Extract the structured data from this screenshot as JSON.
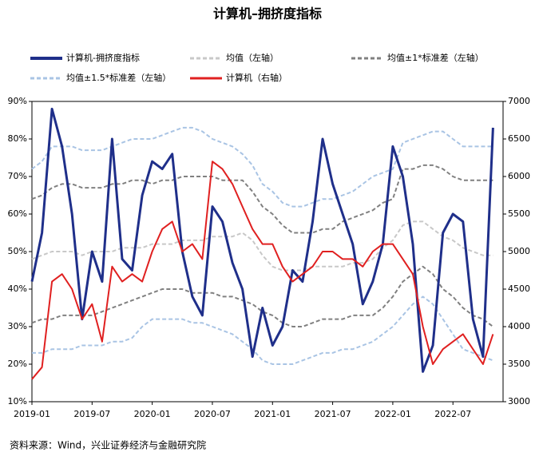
{
  "chart_data": {
    "type": "line",
    "title": "计算机–拥挤度指标",
    "source": "资料来源：Wind，兴业证券经济与金融研究院",
    "categories": [
      "2019-01",
      null,
      null,
      null,
      null,
      null,
      "2019-07",
      null,
      null,
      null,
      null,
      null,
      "2020-01",
      null,
      null,
      null,
      null,
      null,
      "2020-07",
      null,
      null,
      null,
      null,
      null,
      "2021-01",
      null,
      null,
      null,
      null,
      null,
      "2021-07",
      null,
      null,
      null,
      null,
      null,
      "2022-01",
      null,
      null,
      null,
      null,
      null,
      "2022-07",
      null,
      null,
      null,
      null
    ],
    "ylim": [
      10,
      90
    ],
    "yticks": [
      {
        "value": 10,
        "label": "10%"
      },
      {
        "value": 20,
        "label": "20%"
      },
      {
        "value": 30,
        "label": "30%"
      },
      {
        "value": 40,
        "label": "40%"
      },
      {
        "value": 50,
        "label": "50%"
      },
      {
        "value": 60,
        "label": "60%"
      },
      {
        "value": 70,
        "label": "70%"
      },
      {
        "value": 80,
        "label": "80%"
      },
      {
        "value": 90,
        "label": "90%"
      }
    ],
    "y2lim": [
      3000,
      7000
    ],
    "y2ticks": [
      3000,
      3500,
      4000,
      4500,
      5000,
      5500,
      6000,
      6500,
      7000
    ],
    "series": [
      {
        "name": "计算机-拥挤度指标",
        "color": "#1f2f8a",
        "width": 3,
        "dash": false,
        "values": [
          42,
          55,
          88,
          78,
          60,
          32,
          50,
          42,
          80,
          48,
          45,
          65,
          74,
          72,
          76,
          50,
          38,
          33,
          62,
          58,
          47,
          40,
          22,
          35,
          25,
          30,
          45,
          42,
          58,
          80,
          68,
          60,
          52,
          36,
          42,
          52,
          78,
          70,
          52,
          18,
          25,
          55,
          60,
          58,
          32,
          22,
          83
        ]
      },
      {
        "name": "均值（左轴）",
        "color": "#c8c8c8",
        "width": 2,
        "dash": true,
        "values": [
          48,
          49,
          50,
          50,
          50,
          49,
          50,
          50,
          50,
          51,
          51,
          51,
          52,
          52,
          52,
          53,
          53,
          53,
          54,
          54,
          54,
          55,
          53,
          49,
          46,
          45,
          45,
          45,
          46,
          46,
          46,
          46,
          47,
          47,
          48,
          51,
          53,
          57,
          58,
          58,
          56,
          54,
          53,
          51,
          50,
          49,
          49
        ]
      },
      {
        "name": "均值±1*标准差（左轴）",
        "color": "#808080",
        "width": 2,
        "dash": true,
        "upper": [
          64,
          65,
          67,
          68,
          68,
          67,
          67,
          67,
          68,
          68,
          69,
          69,
          68,
          69,
          69,
          70,
          70,
          70,
          70,
          69,
          69,
          69,
          66,
          62,
          60,
          57,
          55,
          55,
          55,
          56,
          56,
          58,
          59,
          60,
          61,
          63,
          64,
          72,
          72,
          73,
          73,
          72,
          70,
          69,
          69,
          69,
          69
        ],
        "lower": [
          31,
          32,
          32,
          33,
          33,
          33,
          33,
          34,
          35,
          36,
          37,
          38,
          39,
          40,
          40,
          40,
          39,
          39,
          39,
          38,
          38,
          37,
          36,
          34,
          33,
          31,
          30,
          30,
          31,
          32,
          32,
          32,
          33,
          33,
          33,
          35,
          38,
          42,
          44,
          46,
          44,
          40,
          38,
          35,
          33,
          32,
          30
        ]
      },
      {
        "name": "均值±1.5*标准差（左轴）",
        "color": "#a9c4e4",
        "width": 2,
        "dash": true,
        "upper": [
          72,
          74,
          78,
          78,
          78,
          77,
          77,
          77,
          78,
          79,
          80,
          80,
          80,
          81,
          82,
          83,
          83,
          82,
          80,
          79,
          78,
          76,
          73,
          68,
          66,
          63,
          62,
          62,
          63,
          64,
          64,
          65,
          66,
          68,
          70,
          71,
          72,
          79,
          80,
          81,
          82,
          82,
          80,
          78,
          78,
          78,
          78
        ],
        "lower": [
          23,
          23,
          24,
          24,
          24,
          25,
          25,
          25,
          26,
          26,
          27,
          30,
          32,
          32,
          32,
          32,
          31,
          31,
          30,
          29,
          28,
          26,
          24,
          21,
          20,
          20,
          20,
          21,
          22,
          23,
          23,
          24,
          24,
          25,
          26,
          28,
          30,
          33,
          36,
          38,
          36,
          32,
          28,
          24,
          23,
          22,
          21
        ]
      },
      {
        "name": "计算机（右轴）",
        "color": "#e02020",
        "width": 2,
        "dash": false,
        "axis": "y2",
        "values": [
          3300,
          3460,
          4600,
          4700,
          4500,
          4100,
          4300,
          3800,
          4800,
          4600,
          4700,
          4600,
          5000,
          5300,
          5400,
          5000,
          5100,
          4900,
          6200,
          6100,
          5900,
          5600,
          5300,
          5100,
          5100,
          4800,
          4600,
          4700,
          4800,
          5000,
          5000,
          4900,
          4900,
          4800,
          5000,
          5100,
          5100,
          4900,
          4700,
          4000,
          3500,
          3700,
          3800,
          3900,
          3700,
          3500,
          3900
        ]
      }
    ]
  }
}
